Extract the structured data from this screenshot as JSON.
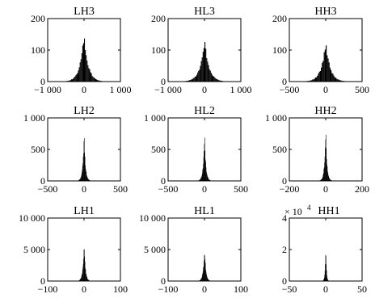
{
  "chart_data": [
    {
      "type": "bar",
      "title": "LH3",
      "xlabel": "",
      "ylabel": "",
      "xlim": [
        -1000,
        1000
      ],
      "ylim": [
        0,
        200
      ],
      "xticks": [
        -1000,
        0,
        1000
      ],
      "xtick_labels": [
        "−1 000",
        "0",
        "1 000"
      ],
      "yticks": [
        0,
        100,
        200
      ],
      "ytick_labels": [
        "0",
        "100",
        "200"
      ],
      "y_multiplier": "",
      "dist": {
        "center": 0,
        "peak": 145,
        "spread": 110,
        "halfwidth": 500,
        "bins": 42
      }
    },
    {
      "type": "bar",
      "title": "HL3",
      "xlabel": "",
      "ylabel": "",
      "xlim": [
        -1000,
        1000
      ],
      "ylim": [
        0,
        200
      ],
      "xticks": [
        -1000,
        0,
        1000
      ],
      "xtick_labels": [
        "−1 000",
        "0",
        "1 000"
      ],
      "yticks": [
        0,
        100,
        200
      ],
      "ytick_labels": [
        "0",
        "100",
        "200"
      ],
      "y_multiplier": "",
      "dist": {
        "center": 0,
        "peak": 130,
        "spread": 120,
        "halfwidth": 520,
        "bins": 42
      }
    },
    {
      "type": "bar",
      "title": "HH3",
      "xlabel": "",
      "ylabel": "",
      "xlim": [
        -500,
        500
      ],
      "ylim": [
        0,
        200
      ],
      "xticks": [
        -500,
        0,
        500
      ],
      "xtick_labels": [
        "−500",
        "0",
        "500"
      ],
      "yticks": [
        0,
        100,
        200
      ],
      "ytick_labels": [
        "0",
        "100",
        "200"
      ],
      "y_multiplier": "",
      "dist": {
        "center": 0,
        "peak": 120,
        "spread": 60,
        "halfwidth": 280,
        "bins": 42
      }
    },
    {
      "type": "bar",
      "title": "LH2",
      "xlabel": "",
      "ylabel": "",
      "xlim": [
        -500,
        500
      ],
      "ylim": [
        0,
        1000
      ],
      "xticks": [
        -500,
        0,
        500
      ],
      "xtick_labels": [
        "−500",
        "0",
        "500"
      ],
      "yticks": [
        0,
        500,
        1000
      ],
      "ytick_labels": [
        "0",
        "500",
        "1 000"
      ],
      "y_multiplier": "",
      "dist": {
        "center": 0,
        "peak": 700,
        "spread": 18,
        "halfwidth": 80,
        "bins": 34
      }
    },
    {
      "type": "bar",
      "title": "HL2",
      "xlabel": "",
      "ylabel": "",
      "xlim": [
        -500,
        500
      ],
      "ylim": [
        0,
        1000
      ],
      "xticks": [
        -500,
        0,
        500
      ],
      "xtick_labels": [
        "−500",
        "0",
        "500"
      ],
      "yticks": [
        0,
        500,
        1000
      ],
      "ytick_labels": [
        "0",
        "500",
        "1 000"
      ],
      "y_multiplier": "",
      "dist": {
        "center": 0,
        "peak": 700,
        "spread": 18,
        "halfwidth": 80,
        "bins": 34
      }
    },
    {
      "type": "bar",
      "title": "HH2",
      "xlabel": "",
      "ylabel": "",
      "xlim": [
        -200,
        200
      ],
      "ylim": [
        0,
        1000
      ],
      "xticks": [
        -200,
        0,
        200
      ],
      "xtick_labels": [
        "−200",
        "0",
        "200"
      ],
      "yticks": [
        0,
        500,
        1000
      ],
      "ytick_labels": [
        "0",
        "500",
        "1 000"
      ],
      "y_multiplier": "",
      "dist": {
        "center": 0,
        "peak": 750,
        "spread": 7,
        "halfwidth": 32,
        "bins": 34
      }
    },
    {
      "type": "bar",
      "title": "LH1",
      "xlabel": "",
      "ylabel": "",
      "xlim": [
        -100,
        100
      ],
      "ylim": [
        0,
        10000
      ],
      "xticks": [
        -100,
        0,
        100
      ],
      "xtick_labels": [
        "−100",
        "0",
        "100"
      ],
      "yticks": [
        0,
        5000,
        10000
      ],
      "ytick_labels": [
        "0",
        "5 000",
        "10 000"
      ],
      "y_multiplier": "",
      "dist": {
        "center": 0,
        "peak": 5600,
        "spread": 3.5,
        "halfwidth": 14,
        "bins": 30
      }
    },
    {
      "type": "bar",
      "title": "HL1",
      "xlabel": "",
      "ylabel": "",
      "xlim": [
        -100,
        100
      ],
      "ylim": [
        0,
        10000
      ],
      "xticks": [
        -100,
        0,
        100
      ],
      "xtick_labels": [
        "−100",
        "0",
        "100"
      ],
      "yticks": [
        0,
        5000,
        10000
      ],
      "ytick_labels": [
        "0",
        "5 000",
        "10 000"
      ],
      "y_multiplier": "",
      "dist": {
        "center": 0,
        "peak": 5200,
        "spread": 3.5,
        "halfwidth": 14,
        "bins": 30
      }
    },
    {
      "type": "bar",
      "title": "HH1",
      "xlabel": "",
      "ylabel": "",
      "xlim": [
        -50,
        50
      ],
      "ylim": [
        0,
        4
      ],
      "xticks": [
        -50,
        0,
        50
      ],
      "xtick_labels": [
        "−50",
        "0",
        "50"
      ],
      "yticks": [
        0,
        2,
        4
      ],
      "ytick_labels": [
        "0",
        "2",
        "4"
      ],
      "y_multiplier": "× 10",
      "y_multiplier_exp": "4",
      "dist": {
        "center": 0,
        "peak": 2.1,
        "spread": 0.9,
        "halfwidth": 4,
        "bins": 18
      }
    }
  ]
}
